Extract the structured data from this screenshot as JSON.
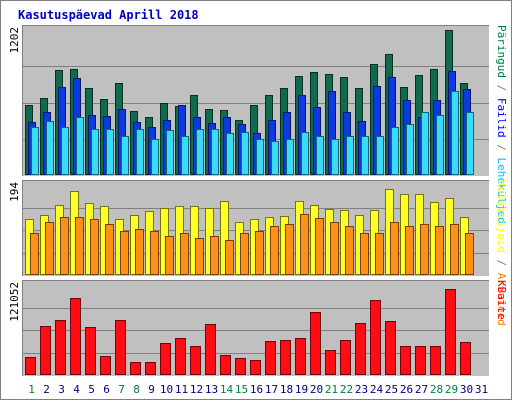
{
  "chart_data": {
    "type": "bar",
    "title": "Kasutuspäevad Aprill 2018",
    "categories": [
      "1",
      "2",
      "3",
      "4",
      "5",
      "6",
      "7",
      "8",
      "9",
      "10",
      "11",
      "12",
      "13",
      "14",
      "15",
      "16",
      "17",
      "18",
      "19",
      "20",
      "21",
      "22",
      "23",
      "24",
      "25",
      "26",
      "27",
      "28",
      "29",
      "30",
      "31"
    ],
    "weekend_days": [
      1,
      7,
      8,
      14,
      15,
      21,
      22,
      28,
      29
    ],
    "panels": [
      {
        "name": "top",
        "max_label": "1202",
        "max_value": 1202,
        "legend": [
          {
            "label": "Päringud",
            "color": "#008040"
          },
          {
            "label": "/",
            "color": "#808080"
          },
          {
            "label": "Failid",
            "color": "#0000ff"
          },
          {
            "label": "/",
            "color": "#808080"
          },
          {
            "label": "Leheküljed",
            "color": "#00c0ff"
          }
        ],
        "series": [
          {
            "name": "Päringud",
            "color": "#106a50",
            "values": [
              580,
              640,
              870,
              880,
              720,
              630,
              760,
              530,
              480,
              600,
              570,
              660,
              550,
              540,
              460,
              580,
              660,
              720,
              820,
              850,
              840,
              810,
              720,
              920,
              1000,
              730,
              830,
              880,
              1202,
              760,
              0
            ]
          },
          {
            "name": "Failid",
            "color": "#0a3ae0",
            "values": [
              440,
              520,
              730,
              800,
              500,
              490,
              550,
              440,
              400,
              460,
              580,
              480,
              430,
              480,
              420,
              350,
              460,
              520,
              660,
              560,
              700,
              520,
              450,
              740,
              810,
              620,
              480,
              620,
              860,
              710,
              0
            ]
          },
          {
            "name": "Leheküljed",
            "color": "#38dcf8",
            "values": [
              400,
              450,
              400,
              480,
              380,
              380,
              320,
              380,
              300,
              370,
              320,
              380,
              380,
              350,
              360,
              300,
              280,
              300,
              360,
              320,
              300,
              320,
              320,
              320,
              400,
              420,
              520,
              500,
              700,
              520,
              0
            ]
          }
        ]
      },
      {
        "name": "middle",
        "max_label": "194",
        "max_value": 194,
        "legend": [
          {
            "label": "Külastajaid",
            "color": "#ffff00"
          },
          {
            "label": "/",
            "color": "#808080"
          },
          {
            "label": "Arvuteid",
            "color": "#ff8000"
          }
        ],
        "series": [
          {
            "name": "Külastajaid",
            "color": "#ffff28",
            "values": [
              120,
              130,
              150,
              182,
              155,
              148,
              120,
              130,
              138,
              145,
              148,
              148,
              145,
              160,
              115,
              120,
              125,
              128,
              160,
              150,
              142,
              140,
              130,
              140,
              186,
              175,
              175,
              158,
              165,
              125,
              0
            ]
          },
          {
            "name": "Arvuteid",
            "color": "#ff9018",
            "values": [
              90,
              115,
              125,
              125,
              120,
              110,
              95,
              100,
              95,
              85,
              90,
              80,
              85,
              75,
              90,
              95,
              105,
              110,
              132,
              122,
              115,
              105,
              90,
              90,
              115,
              105,
              110,
              105,
              110,
              90,
              0
            ]
          }
        ]
      },
      {
        "name": "bottom",
        "max_label": "121052",
        "max_value": 121052,
        "legend": [
          {
            "label": "KBaite",
            "color": "#ff0000"
          }
        ],
        "series": [
          {
            "name": "KBaite",
            "color": "#ff0c14",
            "values": [
              24600,
              65700,
              73800,
              103800,
              64200,
              25600,
              73800,
              16900,
              17800,
              42600,
              49800,
              39000,
              68900,
              26400,
              22800,
              19600,
              45900,
              47600,
              49800,
              85200,
              34200,
              47600,
              70400,
              101000,
              72700,
              38800,
              38800,
              38800,
              115400,
              44300,
              0
            ]
          }
        ]
      }
    ]
  }
}
